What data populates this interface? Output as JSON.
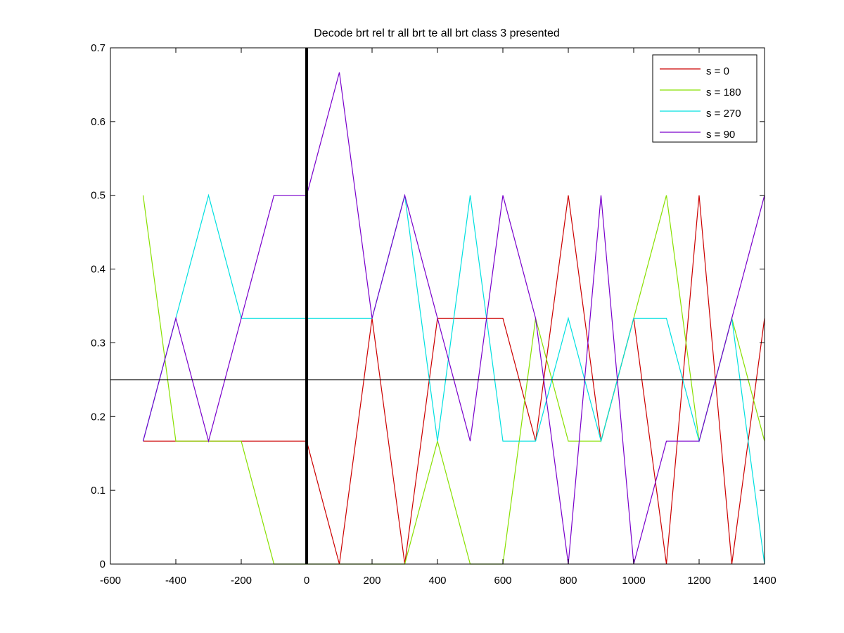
{
  "chart_data": {
    "type": "line",
    "title": "Decode brt rel tr all brt te all brt class 3 presented",
    "xlabel": "",
    "ylabel": "",
    "xlim": [
      -600,
      1400
    ],
    "ylim": [
      0,
      0.7
    ],
    "x_ticks": [
      "-600",
      "-400",
      "-200",
      "0",
      "200",
      "400",
      "600",
      "800",
      "1000",
      "1200",
      "1400"
    ],
    "y_ticks": [
      "0",
      "0.1",
      "0.2",
      "0.3",
      "0.4",
      "0.5",
      "0.6",
      "0.7"
    ],
    "grid": false,
    "legend_position": "top-right",
    "x": [
      -500,
      -400,
      -300,
      -200,
      -100,
      0,
      100,
      200,
      300,
      400,
      500,
      600,
      700,
      800,
      900,
      1000,
      1100,
      1200,
      1300,
      1400
    ],
    "series": [
      {
        "name": "s = 0",
        "color": "#cc0000",
        "values": [
          0.1667,
          0.1667,
          0.1667,
          0.1667,
          0.1667,
          0.1667,
          0,
          0.3333,
          0,
          0.3333,
          0.3333,
          0.3333,
          0.1667,
          0.5,
          0.1667,
          0.3333,
          0,
          0.5,
          0,
          0.3333
        ]
      },
      {
        "name": "s = 180",
        "color": "#88e000",
        "values": [
          0.5,
          0.1667,
          0.1667,
          0.1667,
          0,
          0,
          0,
          0,
          0,
          0.1667,
          0,
          0,
          0.3333,
          0.1667,
          0.1667,
          0.3333,
          0.5,
          0.1667,
          0.3333,
          0.1667
        ]
      },
      {
        "name": "s = 270",
        "color": "#00e0e0",
        "values": [
          0.1667,
          0.3333,
          0.5,
          0.3333,
          0.3333,
          0.3333,
          0.3333,
          0.3333,
          0.5,
          0.1667,
          0.5,
          0.1667,
          0.1667,
          0.3333,
          0.1667,
          0.3333,
          0.3333,
          0.1667,
          0.3333,
          0
        ]
      },
      {
        "name": "s = 90",
        "color": "#7a00cc",
        "values": [
          0.1667,
          0.3333,
          0.1667,
          0.3333,
          0.5,
          0.5,
          0.6667,
          0.3333,
          0.5,
          0.3333,
          0.1667,
          0.5,
          0.3333,
          0,
          0.5,
          0,
          0.1667,
          0.1667,
          0.3333,
          0.5
        ]
      }
    ],
    "reference_lines": [
      {
        "orientation": "vertical",
        "x": 0,
        "color": "#000000"
      },
      {
        "orientation": "horizontal",
        "y": 0.25,
        "color": "#000000"
      }
    ]
  }
}
